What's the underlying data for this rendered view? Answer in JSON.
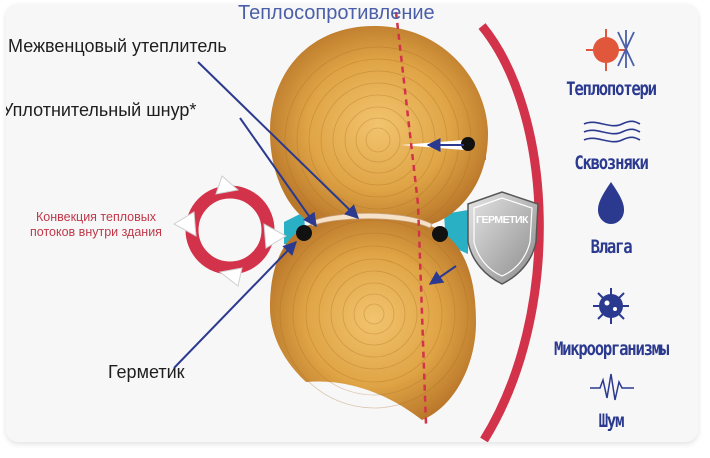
{
  "title": "Теплосопротивление",
  "labels": {
    "insulation": "Межвенцовый утеплитель",
    "cord": "Уплотнительный шнур*",
    "sealant": "Герметик"
  },
  "convection": "Конвекция тепловых потоков внутри здания",
  "shield": "ГЕРМЕТИК",
  "threats": [
    {
      "label": "Теплопотери",
      "icon": "sun-snowflake-icon"
    },
    {
      "label": "Сквозняки",
      "icon": "wind-icon"
    },
    {
      "label": "Влага",
      "icon": "water-drop-icon"
    },
    {
      "label": "Микроорганизмы",
      "icon": "microorganism-icon"
    },
    {
      "label": "Шум",
      "icon": "sound-wave-icon"
    }
  ],
  "colors": {
    "accent_red": "#d2334a",
    "dark_blue": "#2b3a8f",
    "teal": "#2ab0c4",
    "wood": "#d89a3c"
  }
}
